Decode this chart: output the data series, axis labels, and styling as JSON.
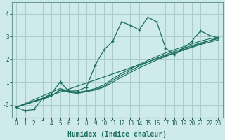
{
  "xlabel": "Humidex (Indice chaleur)",
  "bg_color": "#ceeaea",
  "grid_color": "#aacccc",
  "line_color": "#1a6e5e",
  "xlim": [
    -0.5,
    23.5
  ],
  "ylim": [
    -0.55,
    4.5
  ],
  "xticks": [
    0,
    1,
    2,
    3,
    4,
    5,
    6,
    7,
    8,
    9,
    10,
    11,
    12,
    13,
    14,
    15,
    16,
    17,
    18,
    19,
    20,
    21,
    22,
    23
  ],
  "yticks": [
    0,
    1,
    2,
    3,
    4
  ],
  "ytick_labels": [
    "-0",
    "1",
    "2",
    "3",
    "4"
  ],
  "main_x": [
    0,
    1,
    2,
    3,
    4,
    5,
    6,
    7,
    8,
    9,
    10,
    11,
    12,
    13,
    14,
    15,
    16,
    17,
    18,
    19,
    20,
    21,
    22,
    23
  ],
  "main_y": [
    -0.1,
    -0.25,
    -0.2,
    0.28,
    0.5,
    1.0,
    0.6,
    0.62,
    0.78,
    1.75,
    2.42,
    2.8,
    3.65,
    3.5,
    3.3,
    3.85,
    3.65,
    2.5,
    2.2,
    2.45,
    2.8,
    3.25,
    3.05,
    2.95
  ],
  "line1_x": [
    0,
    23
  ],
  "line1_y": [
    -0.1,
    2.95
  ],
  "line2_x": [
    0,
    5,
    6,
    7,
    8,
    9,
    10,
    11,
    12,
    13,
    14,
    15,
    16,
    17,
    18,
    19,
    20,
    21,
    22,
    23
  ],
  "line2_y": [
    -0.1,
    0.72,
    0.6,
    0.55,
    0.62,
    0.72,
    0.88,
    1.15,
    1.38,
    1.58,
    1.78,
    1.95,
    2.12,
    2.28,
    2.42,
    2.55,
    2.68,
    2.8,
    2.9,
    2.97
  ],
  "line3_x": [
    0,
    4,
    5,
    6,
    7,
    8,
    9,
    10,
    11,
    12,
    13,
    14,
    15,
    16,
    17,
    18,
    19,
    20,
    21,
    22,
    23
  ],
  "line3_y": [
    -0.1,
    0.38,
    0.68,
    0.58,
    0.52,
    0.6,
    0.68,
    0.82,
    1.08,
    1.3,
    1.5,
    1.7,
    1.88,
    2.05,
    2.2,
    2.35,
    2.48,
    2.6,
    2.72,
    2.82,
    2.9
  ],
  "line4_x": [
    0,
    4,
    5,
    6,
    7,
    8,
    9,
    10,
    11,
    12,
    13,
    14,
    15,
    16,
    17,
    18,
    19,
    20,
    21,
    22,
    23
  ],
  "line4_y": [
    -0.1,
    0.38,
    0.65,
    0.55,
    0.5,
    0.58,
    0.65,
    0.78,
    1.0,
    1.22,
    1.42,
    1.62,
    1.8,
    1.97,
    2.12,
    2.27,
    2.4,
    2.52,
    2.65,
    2.75,
    2.85
  ]
}
